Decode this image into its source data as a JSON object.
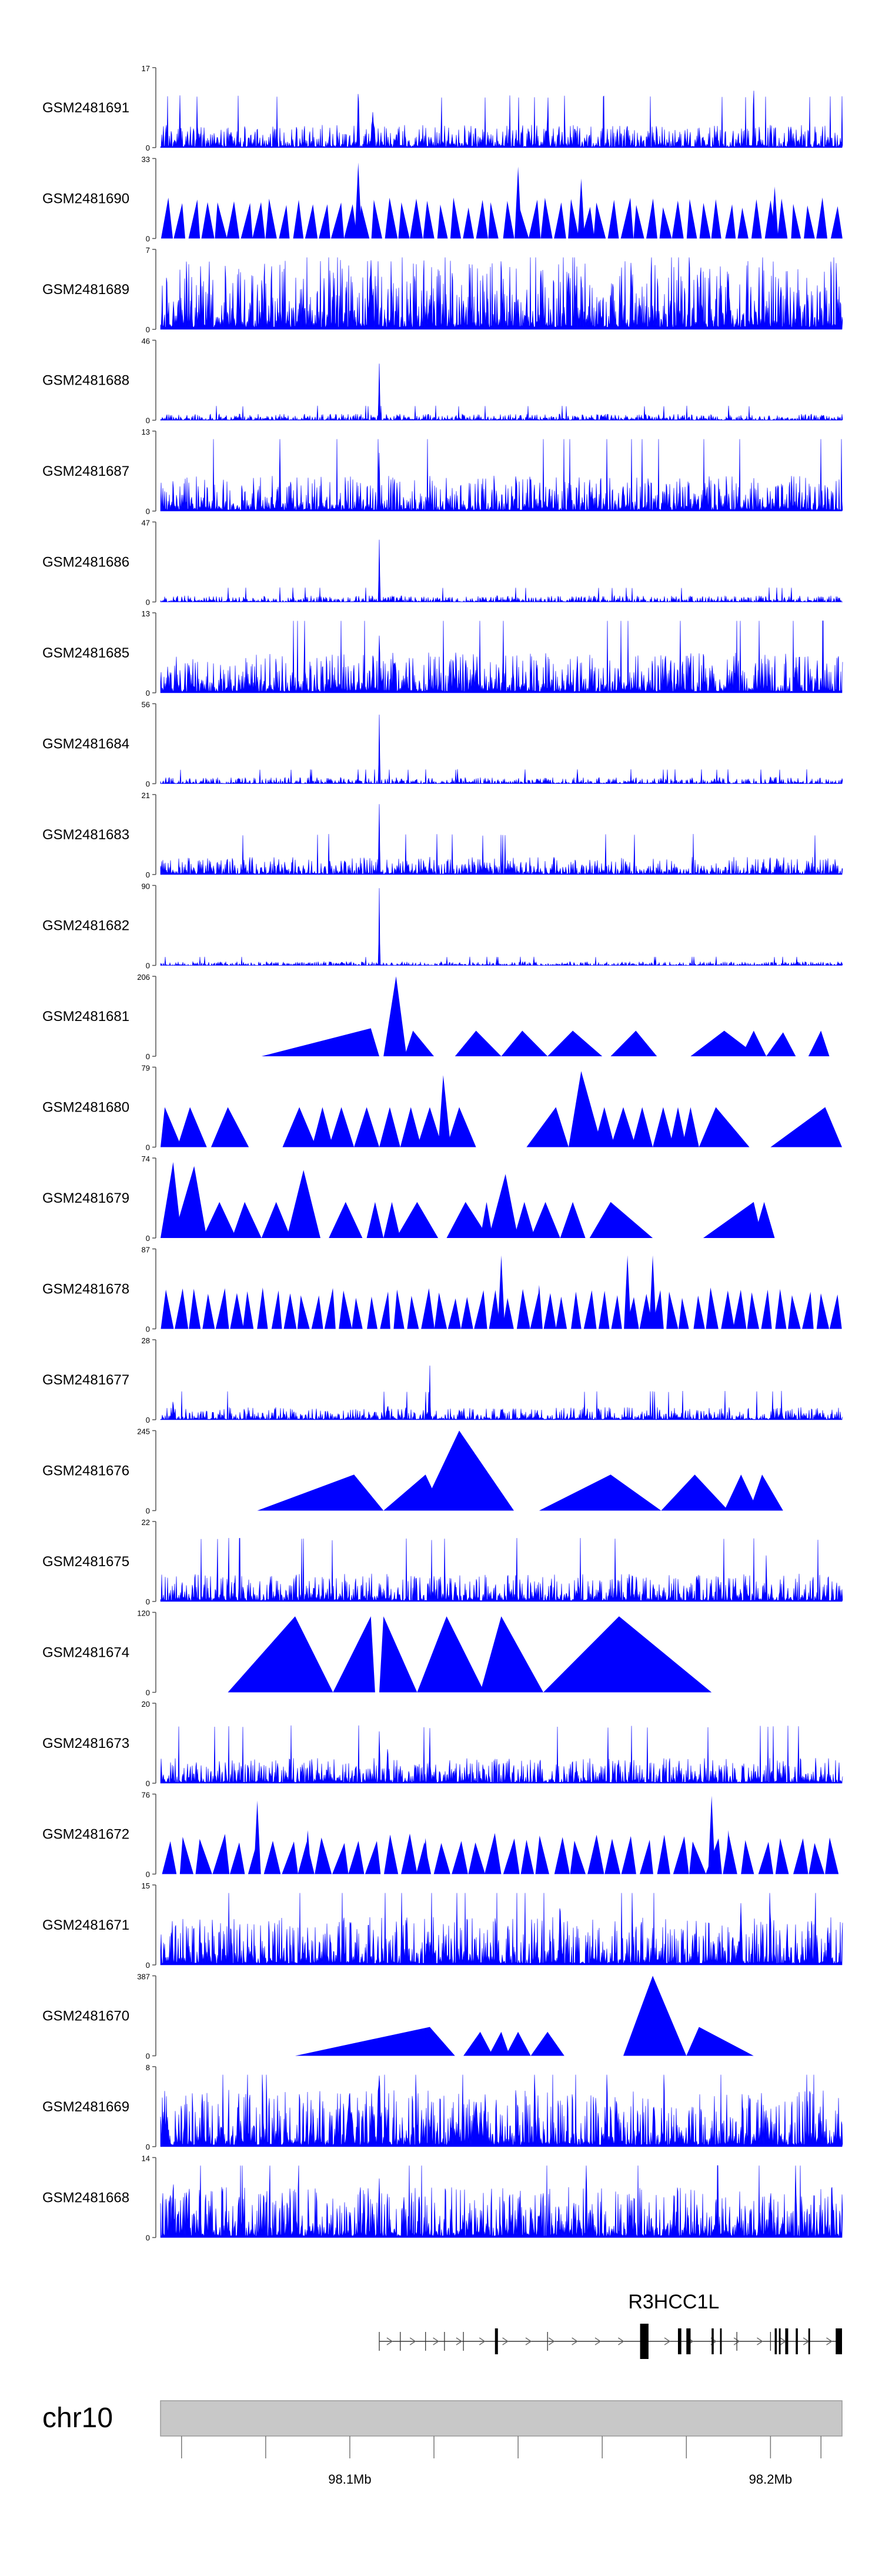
{
  "chart_data": {
    "type": "area",
    "title": "",
    "color": "#0000ff",
    "xrange_bp": [
      98055000,
      98217000
    ],
    "tracks": [
      {
        "name": "GSM2481691",
        "ymax": "17",
        "ymax_value": 17,
        "style": "noise",
        "seed": 11,
        "base": 0.18,
        "spikes": [
          [
            98102000,
            0.85,
            350
          ],
          [
            98105500,
            0.55,
            700
          ],
          [
            98147000,
            0.4,
            600
          ],
          [
            98196000,
            0.93,
            300
          ]
        ]
      },
      {
        "name": "GSM2481690",
        "ymax": "33",
        "ymax_value": 33,
        "style": "triangles",
        "seed": 12,
        "count": 52,
        "tall": [
          [
            98102000,
            0.95
          ],
          [
            98140000,
            0.9
          ],
          [
            98155000,
            0.75
          ],
          [
            98201000,
            0.65
          ]
        ]
      },
      {
        "name": "GSM2481689",
        "ymax": "7",
        "ymax_value": 7,
        "style": "noise",
        "seed": 13,
        "base": 0.55,
        "spikes": [
          [
            98105000,
            0.95,
            900
          ],
          [
            98152000,
            0.85,
            600
          ],
          [
            98190000,
            0.8,
            600
          ]
        ]
      },
      {
        "name": "GSM2481688",
        "ymax": "46",
        "ymax_value": 46,
        "style": "noise",
        "seed": 14,
        "base": 0.05,
        "spikes": [
          [
            98107000,
            1.0,
            220
          ]
        ]
      },
      {
        "name": "GSM2481687",
        "ymax": "13",
        "ymax_value": 13,
        "style": "noise",
        "seed": 15,
        "base": 0.28,
        "spikes": [
          [
            98107000,
            0.97,
            260
          ],
          [
            98165000,
            0.45,
            500
          ]
        ]
      },
      {
        "name": "GSM2481686",
        "ymax": "47",
        "ymax_value": 47,
        "style": "noise",
        "seed": 16,
        "base": 0.05,
        "spikes": [
          [
            98107000,
            0.98,
            220
          ]
        ]
      },
      {
        "name": "GSM2481685",
        "ymax": "13",
        "ymax_value": 13,
        "style": "noise",
        "seed": 17,
        "base": 0.32,
        "spikes": [
          [
            98107000,
            0.95,
            300
          ],
          [
            98175000,
            0.55,
            500
          ]
        ]
      },
      {
        "name": "GSM2481684",
        "ymax": "56",
        "ymax_value": 56,
        "style": "noise",
        "seed": 18,
        "base": 0.05,
        "spikes": [
          [
            98107000,
            0.98,
            220
          ],
          [
            98200000,
            0.12,
            400
          ]
        ]
      },
      {
        "name": "GSM2481683",
        "ymax": "21",
        "ymax_value": 21,
        "style": "noise",
        "seed": 19,
        "base": 0.14,
        "spikes": [
          [
            98107000,
            0.95,
            260
          ]
        ]
      },
      {
        "name": "GSM2481682",
        "ymax": "90",
        "ymax_value": 90,
        "style": "noise",
        "seed": 20,
        "base": 0.03,
        "spikes": [
          [
            98107000,
            1.0,
            200
          ]
        ]
      },
      {
        "name": "GSM2481681",
        "ymax": "206",
        "ymax_value": 206,
        "style": "peaks",
        "peaks": [
          [
            98079000,
            98107000,
            98105000,
            0.35
          ],
          [
            98108000,
            98113500,
            98111000,
            1.0
          ],
          [
            98113000,
            98120000,
            98115000,
            0.32
          ],
          [
            98125000,
            98136000,
            98130000,
            0.32
          ],
          [
            98136000,
            98147000,
            98141000,
            0.32
          ],
          [
            98147000,
            98160000,
            98153000,
            0.32
          ],
          [
            98162000,
            98173000,
            98168000,
            0.32
          ],
          [
            98181000,
            98197000,
            98189000,
            0.32
          ],
          [
            98193000,
            98199000,
            98196000,
            0.32
          ],
          [
            98199000,
            98206000,
            98203000,
            0.3
          ],
          [
            98209000,
            98214000,
            98212000,
            0.32
          ]
        ]
      },
      {
        "name": "GSM2481680",
        "ymax": "79",
        "ymax_value": 79,
        "style": "peaks",
        "peaks": [
          [
            98055000,
            98060000,
            98056000,
            0.5
          ],
          [
            98059000,
            98066000,
            98062000,
            0.5
          ],
          [
            98067000,
            98076000,
            98071000,
            0.5
          ],
          [
            98084000,
            98092000,
            98088000,
            0.5
          ],
          [
            98091000,
            98096000,
            98093500,
            0.5
          ],
          [
            98095000,
            98101000,
            98098000,
            0.5
          ],
          [
            98101000,
            98107000,
            98104000,
            0.5
          ],
          [
            98107000,
            98112000,
            98109500,
            0.5
          ],
          [
            98112000,
            98117000,
            98114500,
            0.5
          ],
          [
            98116000,
            98122000,
            98119000,
            0.5
          ],
          [
            98121000,
            98124000,
            98122200,
            0.9
          ],
          [
            98123000,
            98130000,
            98126000,
            0.5
          ],
          [
            98142000,
            98152000,
            98149000,
            0.5
          ],
          [
            98152000,
            98160000,
            98155000,
            0.95
          ],
          [
            98158000,
            98163000,
            98160500,
            0.5
          ],
          [
            98162000,
            98168000,
            98165000,
            0.5
          ],
          [
            98167000,
            98172000,
            98169500,
            0.5
          ],
          [
            98172000,
            98177000,
            98174500,
            0.5
          ],
          [
            98176000,
            98180000,
            98178000,
            0.5
          ],
          [
            98179000,
            98183000,
            98181000,
            0.5
          ],
          [
            98183000,
            98195000,
            98187000,
            0.5
          ],
          [
            98200000,
            98217000,
            98213000,
            0.5
          ]
        ]
      },
      {
        "name": "GSM2481679",
        "ymax": "74",
        "ymax_value": 74,
        "style": "peaks",
        "peaks": [
          [
            98055000,
            98060000,
            98058000,
            0.95
          ],
          [
            98058000,
            98066000,
            98063000,
            0.9
          ],
          [
            98065000,
            98073000,
            98069000,
            0.45
          ],
          [
            98072000,
            98079000,
            98075000,
            0.45
          ],
          [
            98079000,
            98086000,
            98082500,
            0.45
          ],
          [
            98085000,
            98093000,
            98089000,
            0.85
          ],
          [
            98088000,
            98093000,
            98090500,
            0.45
          ],
          [
            98095000,
            98103000,
            98099000,
            0.45
          ],
          [
            98104000,
            98108000,
            98106000,
            0.45
          ],
          [
            98108000,
            98112000,
            98110000,
            0.45
          ],
          [
            98111000,
            98121000,
            98116000,
            0.45
          ],
          [
            98123000,
            98133000,
            98127500,
            0.45
          ],
          [
            98131000,
            98134000,
            98132500,
            0.45
          ],
          [
            98133000,
            98140000,
            98137000,
            0.8
          ],
          [
            98139000,
            98144000,
            98141500,
            0.45
          ],
          [
            98143000,
            98150000,
            98146500,
            0.45
          ],
          [
            98150000,
            98156000,
            98153000,
            0.45
          ],
          [
            98157000,
            98172000,
            98162000,
            0.45
          ],
          [
            98184000,
            98198000,
            98196000,
            0.45
          ],
          [
            98196000,
            98201000,
            98198500,
            0.45
          ]
        ]
      },
      {
        "name": "GSM2481678",
        "ymax": "87",
        "ymax_value": 87,
        "style": "triangles",
        "seed": 24,
        "count": 50,
        "tall": [
          [
            98136000,
            0.92
          ],
          [
            98166000,
            0.92
          ],
          [
            98172000,
            0.92
          ],
          [
            98145000,
            0.55
          ]
        ]
      },
      {
        "name": "GSM2481677",
        "ymax": "28",
        "ymax_value": 28,
        "style": "noise",
        "seed": 25,
        "base": 0.1,
        "spikes": [
          [
            98058000,
            0.35,
            300
          ],
          [
            98119000,
            0.98,
            200
          ],
          [
            98109000,
            0.25,
            400
          ]
        ]
      },
      {
        "name": "GSM2481676",
        "ymax": "245",
        "ymax_value": 245,
        "style": "peaks",
        "peaks": [
          [
            98078000,
            98108000,
            98101000,
            0.45
          ],
          [
            98108000,
            98122000,
            98118000,
            0.45
          ],
          [
            98117000,
            98139000,
            98126000,
            1.0
          ],
          [
            98145000,
            98174000,
            98162000,
            0.45
          ],
          [
            98174000,
            98190000,
            98182000,
            0.45
          ],
          [
            98189000,
            98197000,
            98193000,
            0.45
          ],
          [
            98195000,
            98203000,
            98198000,
            0.45
          ]
        ]
      },
      {
        "name": "GSM2481675",
        "ymax": "22",
        "ymax_value": 22,
        "style": "noise",
        "seed": 27,
        "base": 0.22,
        "spikes": [
          [
            98199000,
            0.98,
            200
          ],
          [
            98125000,
            0.3,
            400
          ]
        ]
      },
      {
        "name": "GSM2481674",
        "ymax": "120",
        "ymax_value": 120,
        "style": "peaks",
        "peaks": [
          [
            98071000,
            98096000,
            98087000,
            0.95
          ],
          [
            98096000,
            98106000,
            98105000,
            0.95
          ],
          [
            98107000,
            98116000,
            98108000,
            0.95
          ],
          [
            98116000,
            98132000,
            98123000,
            0.95
          ],
          [
            98131000,
            98146000,
            98136000,
            0.95
          ],
          [
            98146000,
            98186000,
            98164000,
            0.95
          ]
        ]
      },
      {
        "name": "GSM2481673",
        "ymax": "20",
        "ymax_value": 20,
        "style": "noise",
        "seed": 29,
        "base": 0.2,
        "spikes": [
          [
            98107000,
            0.97,
            220
          ],
          [
            98109000,
            0.75,
            300
          ],
          [
            98112000,
            0.25,
            400
          ],
          [
            98119000,
            0.97,
            200
          ]
        ]
      },
      {
        "name": "GSM2481672",
        "ymax": "76",
        "ymax_value": 76,
        "style": "triangles",
        "seed": 30,
        "count": 40,
        "tall": [
          [
            98078000,
            0.92
          ],
          [
            98090000,
            0.55
          ],
          [
            98118000,
            0.45
          ],
          [
            98186000,
            0.98
          ],
          [
            98190000,
            0.55
          ]
        ]
      },
      {
        "name": "GSM2481671",
        "ymax": "15",
        "ymax_value": 15,
        "style": "noise",
        "seed": 31,
        "base": 0.38,
        "spikes": [
          [
            98150000,
            0.92,
            400
          ],
          [
            98193000,
            0.88,
            400
          ],
          [
            98200000,
            0.85,
            300
          ]
        ]
      },
      {
        "name": "GSM2481670",
        "ymax": "387",
        "ymax_value": 387,
        "style": "peaks",
        "peaks": [
          [
            98087000,
            98125000,
            98119000,
            0.36
          ],
          [
            98127000,
            98134000,
            98131000,
            0.3
          ],
          [
            98133000,
            98138000,
            98136000,
            0.3
          ],
          [
            98137000,
            98143000,
            98140000,
            0.3
          ],
          [
            98143000,
            98151000,
            98147000,
            0.3
          ],
          [
            98165000,
            98180000,
            98172000,
            1.0
          ],
          [
            98180000,
            98196000,
            98183000,
            0.36
          ]
        ]
      },
      {
        "name": "GSM2481669",
        "ymax": "8",
        "ymax_value": 8,
        "style": "noise",
        "seed": 33,
        "base": 0.45,
        "spikes": [
          [
            98107000,
            0.98,
            700
          ],
          [
            98100000,
            0.75,
            1200
          ],
          [
            98130000,
            0.7,
            800
          ]
        ]
      },
      {
        "name": "GSM2481668",
        "ymax": "14",
        "ymax_value": 14,
        "style": "noise",
        "seed": 34,
        "base": 0.4,
        "spikes": [
          [
            98058000,
            0.95,
            300
          ],
          [
            98107000,
            0.97,
            300
          ],
          [
            98138000,
            0.88,
            300
          ],
          [
            98200000,
            0.9,
            300
          ]
        ]
      }
    ],
    "gene": {
      "name": "R3HCC1L",
      "start": 98107000,
      "end": 98217000,
      "exons": [
        [
          98134500,
          98135200
        ],
        [
          98169000,
          98171000
        ],
        [
          98178000,
          98178800
        ],
        [
          98180000,
          98181000
        ],
        [
          98186000,
          98186500
        ],
        [
          98188000,
          98188400
        ],
        [
          98201000,
          98201500
        ],
        [
          98202000,
          98202400
        ],
        [
          98203500,
          98204200
        ],
        [
          98206000,
          98206500
        ],
        [
          98209000,
          98209400
        ],
        [
          98215500,
          98217000
        ]
      ],
      "gaps": [
        [
          98171000,
          98178000
        ],
        [
          98181000,
          98186000
        ],
        [
          98189000,
          98201000
        ]
      ]
    },
    "chromosome": "chr10",
    "ideogram": {
      "ticks_bp": [
        98060000,
        98080000,
        98100000,
        98120000,
        98140000,
        98160000,
        98180000,
        98200000,
        98212000
      ],
      "labels": [
        {
          "bp": 98100000,
          "text": "98.1Mb"
        },
        {
          "bp": 98200000,
          "text": "98.2Mb"
        }
      ]
    }
  }
}
